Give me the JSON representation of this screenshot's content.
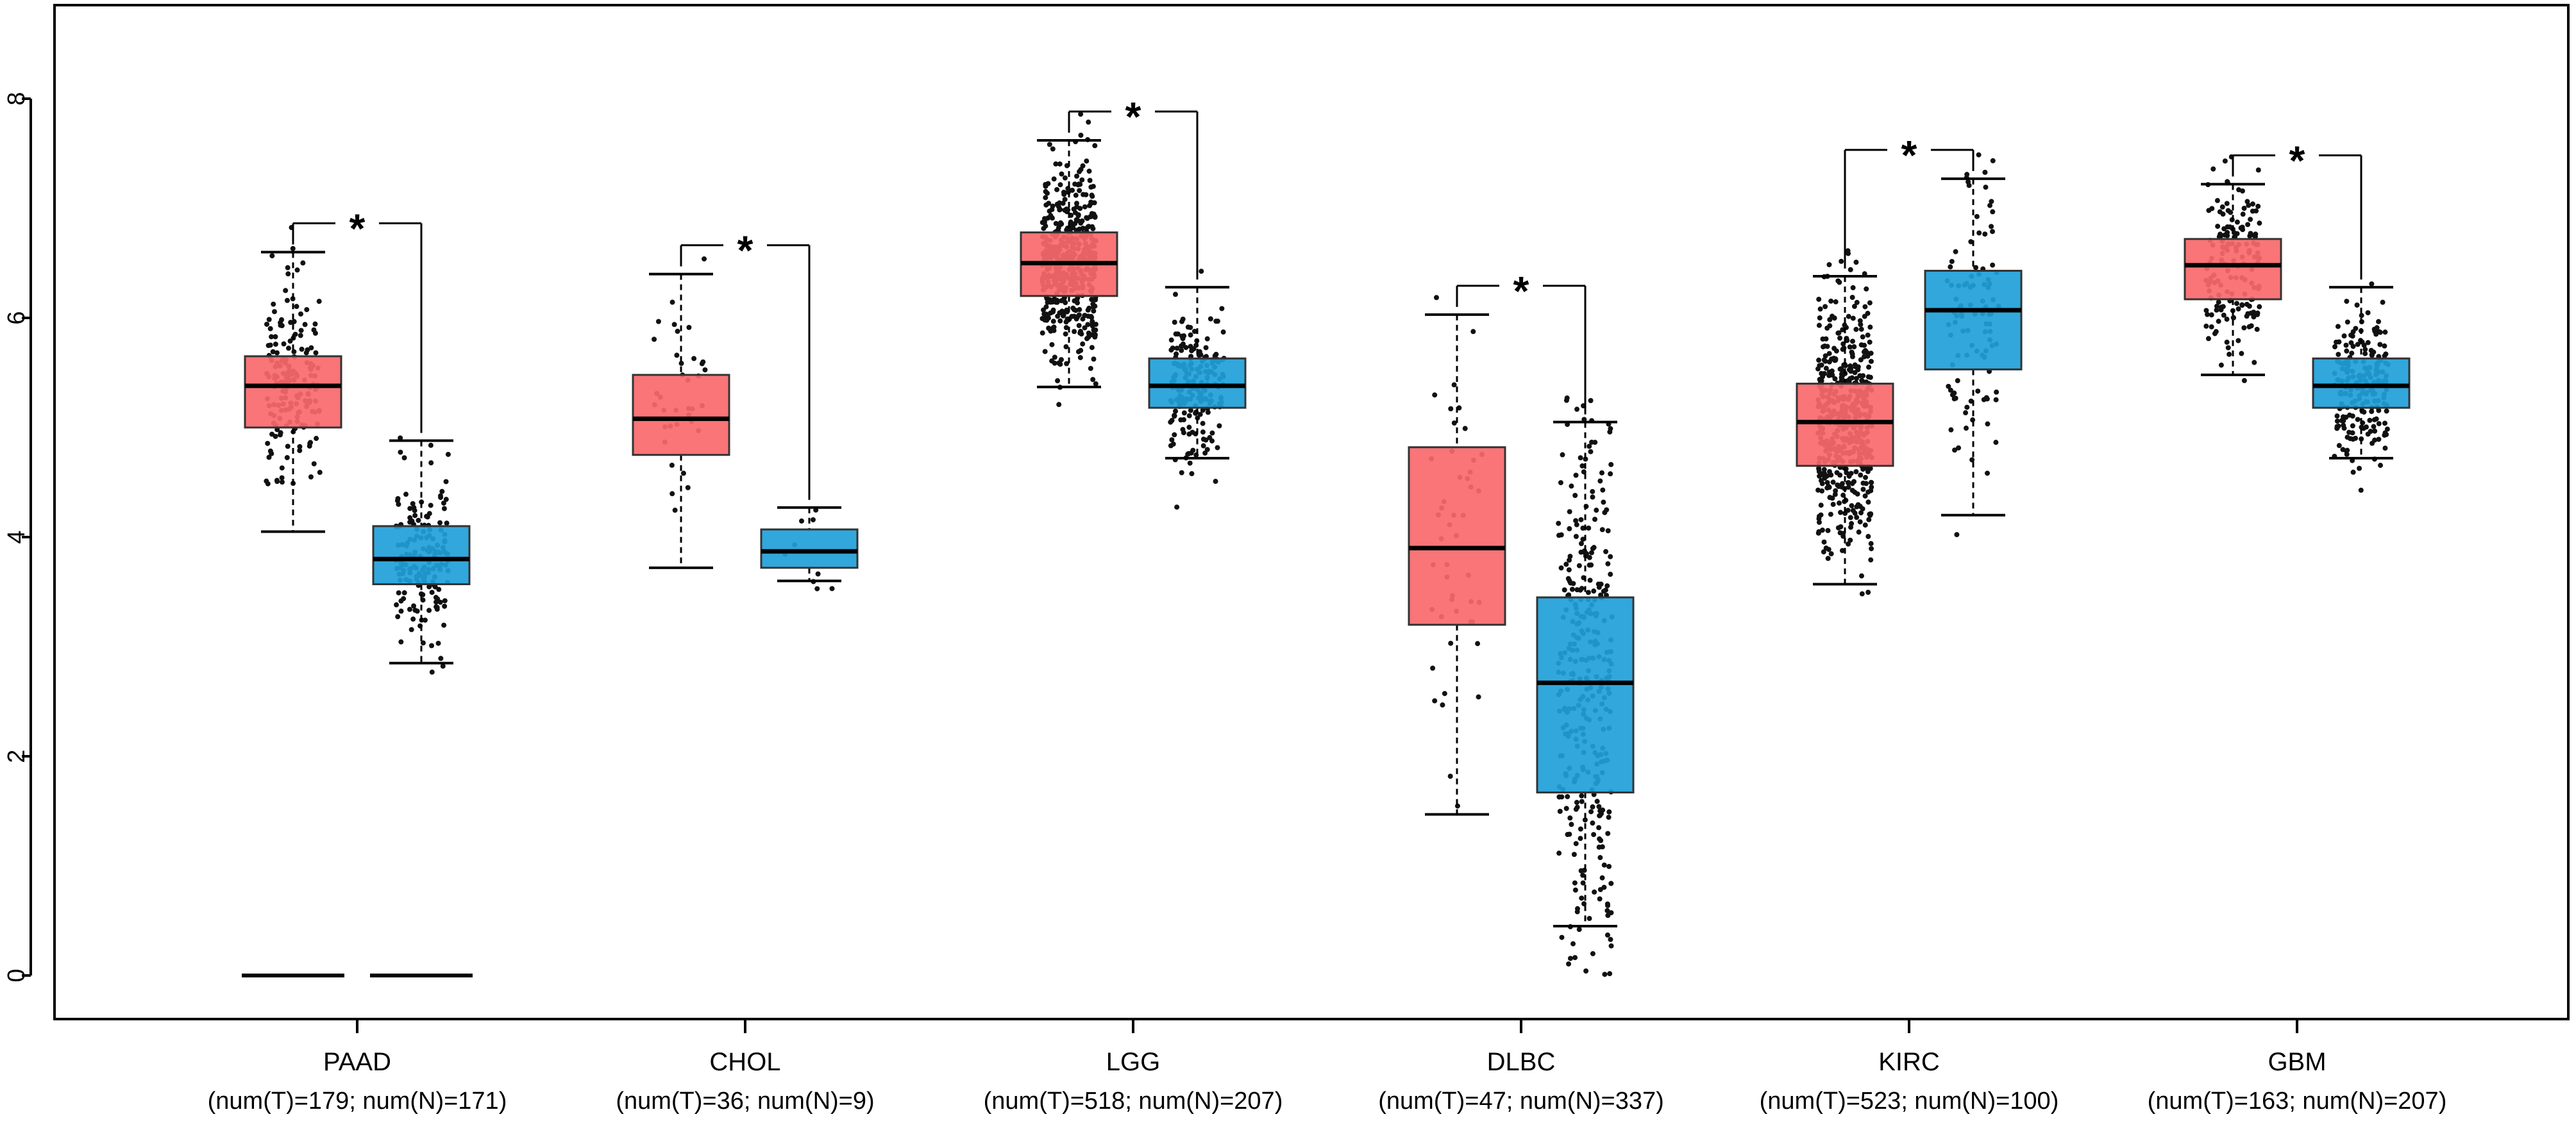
{
  "chart_data": {
    "type": "box",
    "ylim": [
      0,
      8
    ],
    "yticks": [
      "0",
      "2",
      "4",
      "6",
      "8"
    ],
    "colors": {
      "tumor": "#f8696b",
      "normal": "#1f9fd9",
      "significance": "#e32b2b"
    },
    "significance_label": "*",
    "groups": [
      {
        "name": "PAAD",
        "counts": "(num(T)=179; num(N)=171)",
        "significant": true,
        "tumor": {
          "whisker_low": 4.05,
          "q1": 5.0,
          "median": 5.38,
          "q3": 5.65,
          "whisker_high": 6.6,
          "points": 179,
          "zero_floor": true
        },
        "normal": {
          "whisker_low": 2.85,
          "q1": 3.57,
          "median": 3.8,
          "q3": 4.1,
          "whisker_high": 4.88,
          "points": 171,
          "zero_floor": true
        }
      },
      {
        "name": "CHOL",
        "counts": "(num(T)=36; num(N)=9)",
        "significant": true,
        "tumor": {
          "whisker_low": 3.72,
          "q1": 4.75,
          "median": 5.08,
          "q3": 5.48,
          "whisker_high": 6.4,
          "points": 36
        },
        "normal": {
          "whisker_low": 3.6,
          "q1": 3.72,
          "median": 3.87,
          "q3": 4.07,
          "whisker_high": 4.27,
          "points": 9
        }
      },
      {
        "name": "LGG",
        "counts": "(num(T)=518; num(N)=207)",
        "significant": true,
        "tumor": {
          "whisker_low": 5.37,
          "q1": 6.2,
          "median": 6.5,
          "q3": 6.78,
          "whisker_high": 7.62,
          "points": 518
        },
        "normal": {
          "whisker_low": 4.72,
          "q1": 5.18,
          "median": 5.38,
          "q3": 5.63,
          "whisker_high": 6.28,
          "points": 207
        }
      },
      {
        "name": "DLBC",
        "counts": "(num(T)=47; num(N)=337)",
        "significant": true,
        "tumor": {
          "whisker_low": 1.47,
          "q1": 3.2,
          "median": 3.9,
          "q3": 4.82,
          "whisker_high": 6.03,
          "points": 47
        },
        "normal": {
          "whisker_low": 0.45,
          "q1": 1.67,
          "median": 2.67,
          "q3": 3.45,
          "whisker_high": 5.05,
          "points": 337
        }
      },
      {
        "name": "KIRC",
        "counts": "(num(T)=523; num(N)=100)",
        "significant": true,
        "tumor": {
          "whisker_low": 3.57,
          "q1": 4.65,
          "median": 5.05,
          "q3": 5.4,
          "whisker_high": 6.38,
          "points": 523
        },
        "normal": {
          "whisker_low": 4.2,
          "q1": 5.53,
          "median": 6.07,
          "q3": 6.43,
          "whisker_high": 7.27,
          "points": 100
        }
      },
      {
        "name": "GBM",
        "counts": "(num(T)=163; num(N)=207)",
        "significant": true,
        "tumor": {
          "whisker_low": 5.48,
          "q1": 6.17,
          "median": 6.48,
          "q3": 6.72,
          "whisker_high": 7.22,
          "points": 163
        },
        "normal": {
          "whisker_low": 4.72,
          "q1": 5.18,
          "median": 5.38,
          "q3": 5.63,
          "whisker_high": 6.28,
          "points": 207
        }
      }
    ]
  }
}
